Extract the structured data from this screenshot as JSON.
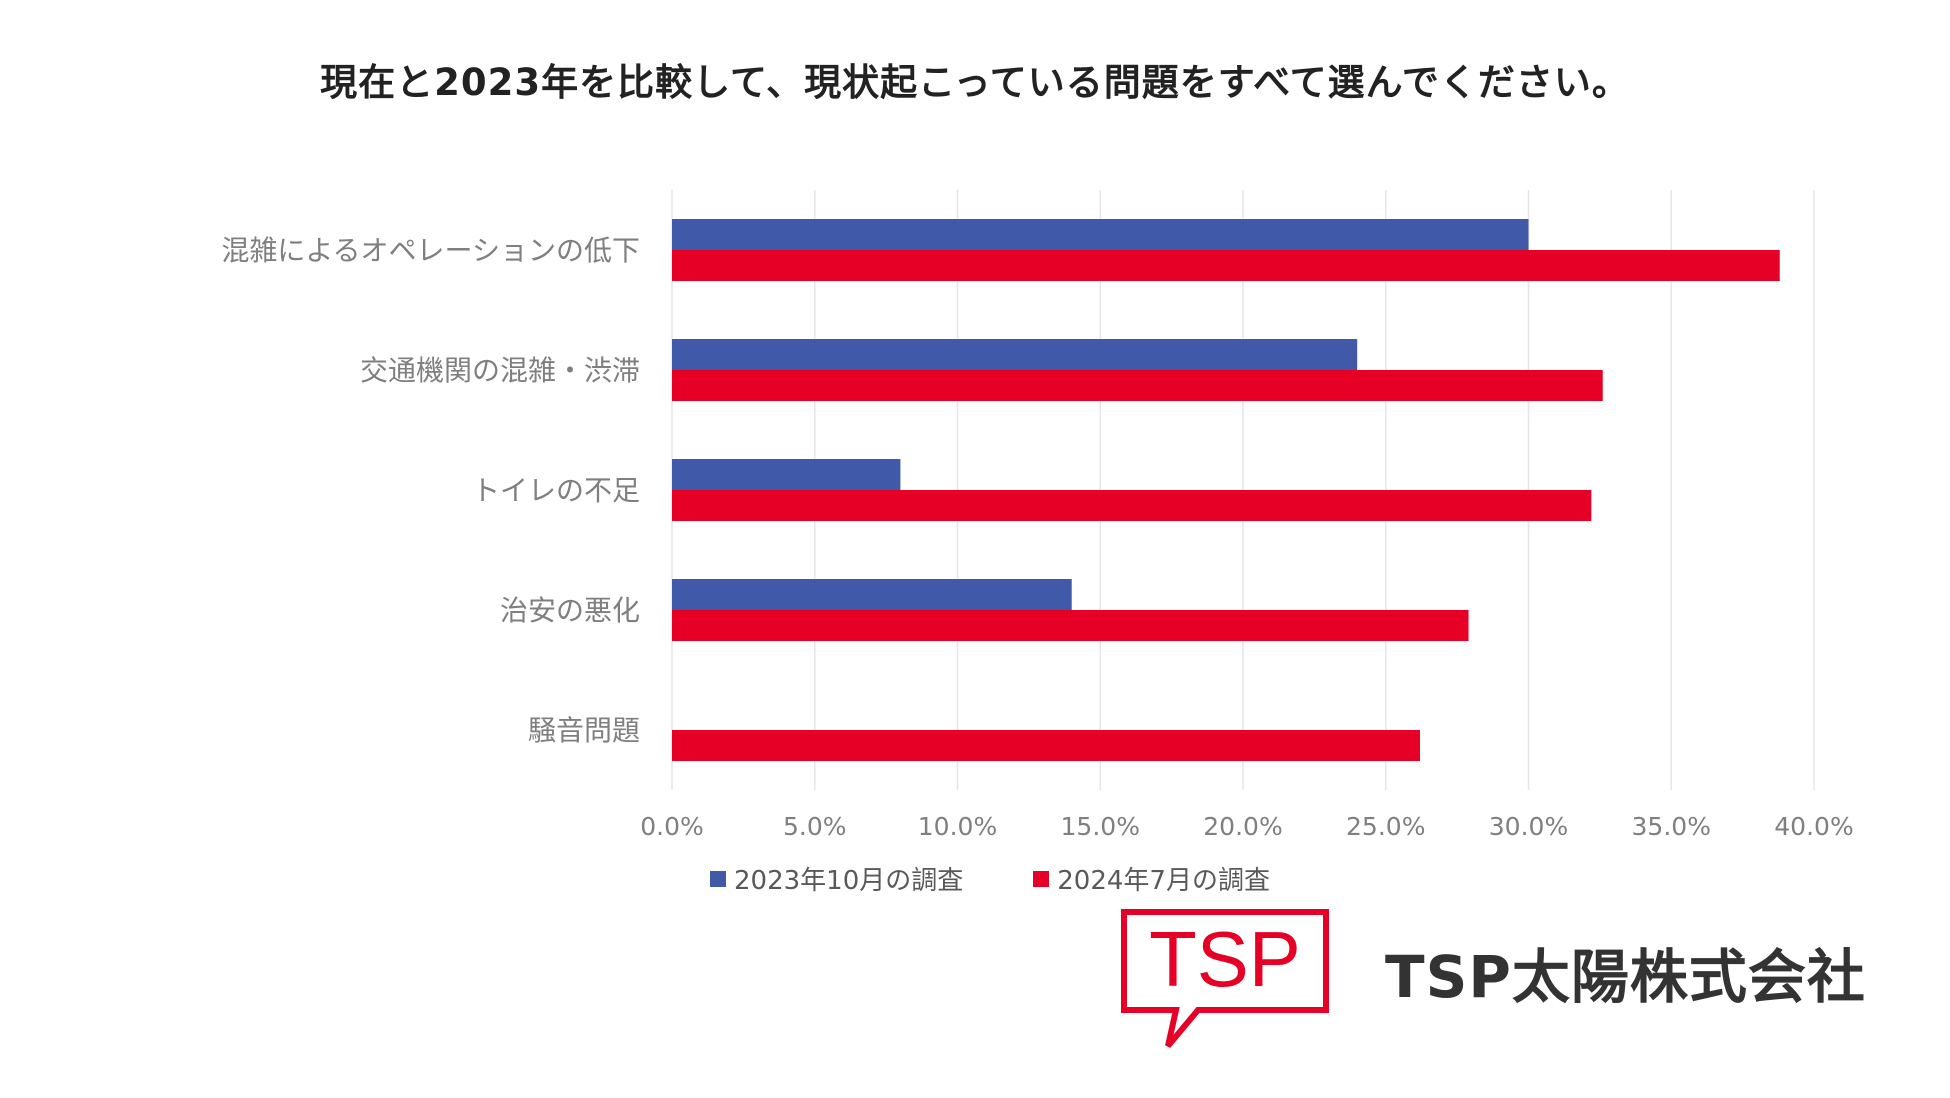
{
  "title": "現在と2023年を比較して、現状起こっている問題をすべて選んでください。",
  "chart_data": {
    "type": "bar",
    "orientation": "horizontal",
    "title": "現在と2023年を比較して、現状起こっている問題をすべて選んでください。",
    "categories": [
      "混雑によるオペレーションの低下",
      "交通機関の混雑・渋滞",
      "トイレの不足",
      "治安の悪化",
      "騒音問題"
    ],
    "series": [
      {
        "name": "2023年10月の調査",
        "color": "#4059a8",
        "values": [
          30.0,
          24.0,
          8.0,
          14.0,
          null
        ]
      },
      {
        "name": "2024年7月の調査",
        "color": "#e60026",
        "values": [
          38.8,
          32.6,
          32.2,
          27.9,
          26.2
        ]
      }
    ],
    "xlim": [
      0,
      40
    ],
    "xticks": [
      0,
      5,
      10,
      15,
      20,
      25,
      30,
      35,
      40
    ],
    "xtick_labels": [
      "0.0%",
      "5.0%",
      "10.0%",
      "15.0%",
      "20.0%",
      "25.0%",
      "30.0%",
      "35.0%",
      "40.0%"
    ],
    "grid": true,
    "legend_position": "bottom"
  },
  "legend": {
    "items": [
      {
        "label": "2023年10月の調査",
        "color": "#4059a8"
      },
      {
        "label": "2024年7月の調査",
        "color": "#e60026"
      }
    ]
  },
  "logo": {
    "text": "TSP",
    "color": "#e60026"
  },
  "company": {
    "name": "TSP太陽株式会社"
  }
}
